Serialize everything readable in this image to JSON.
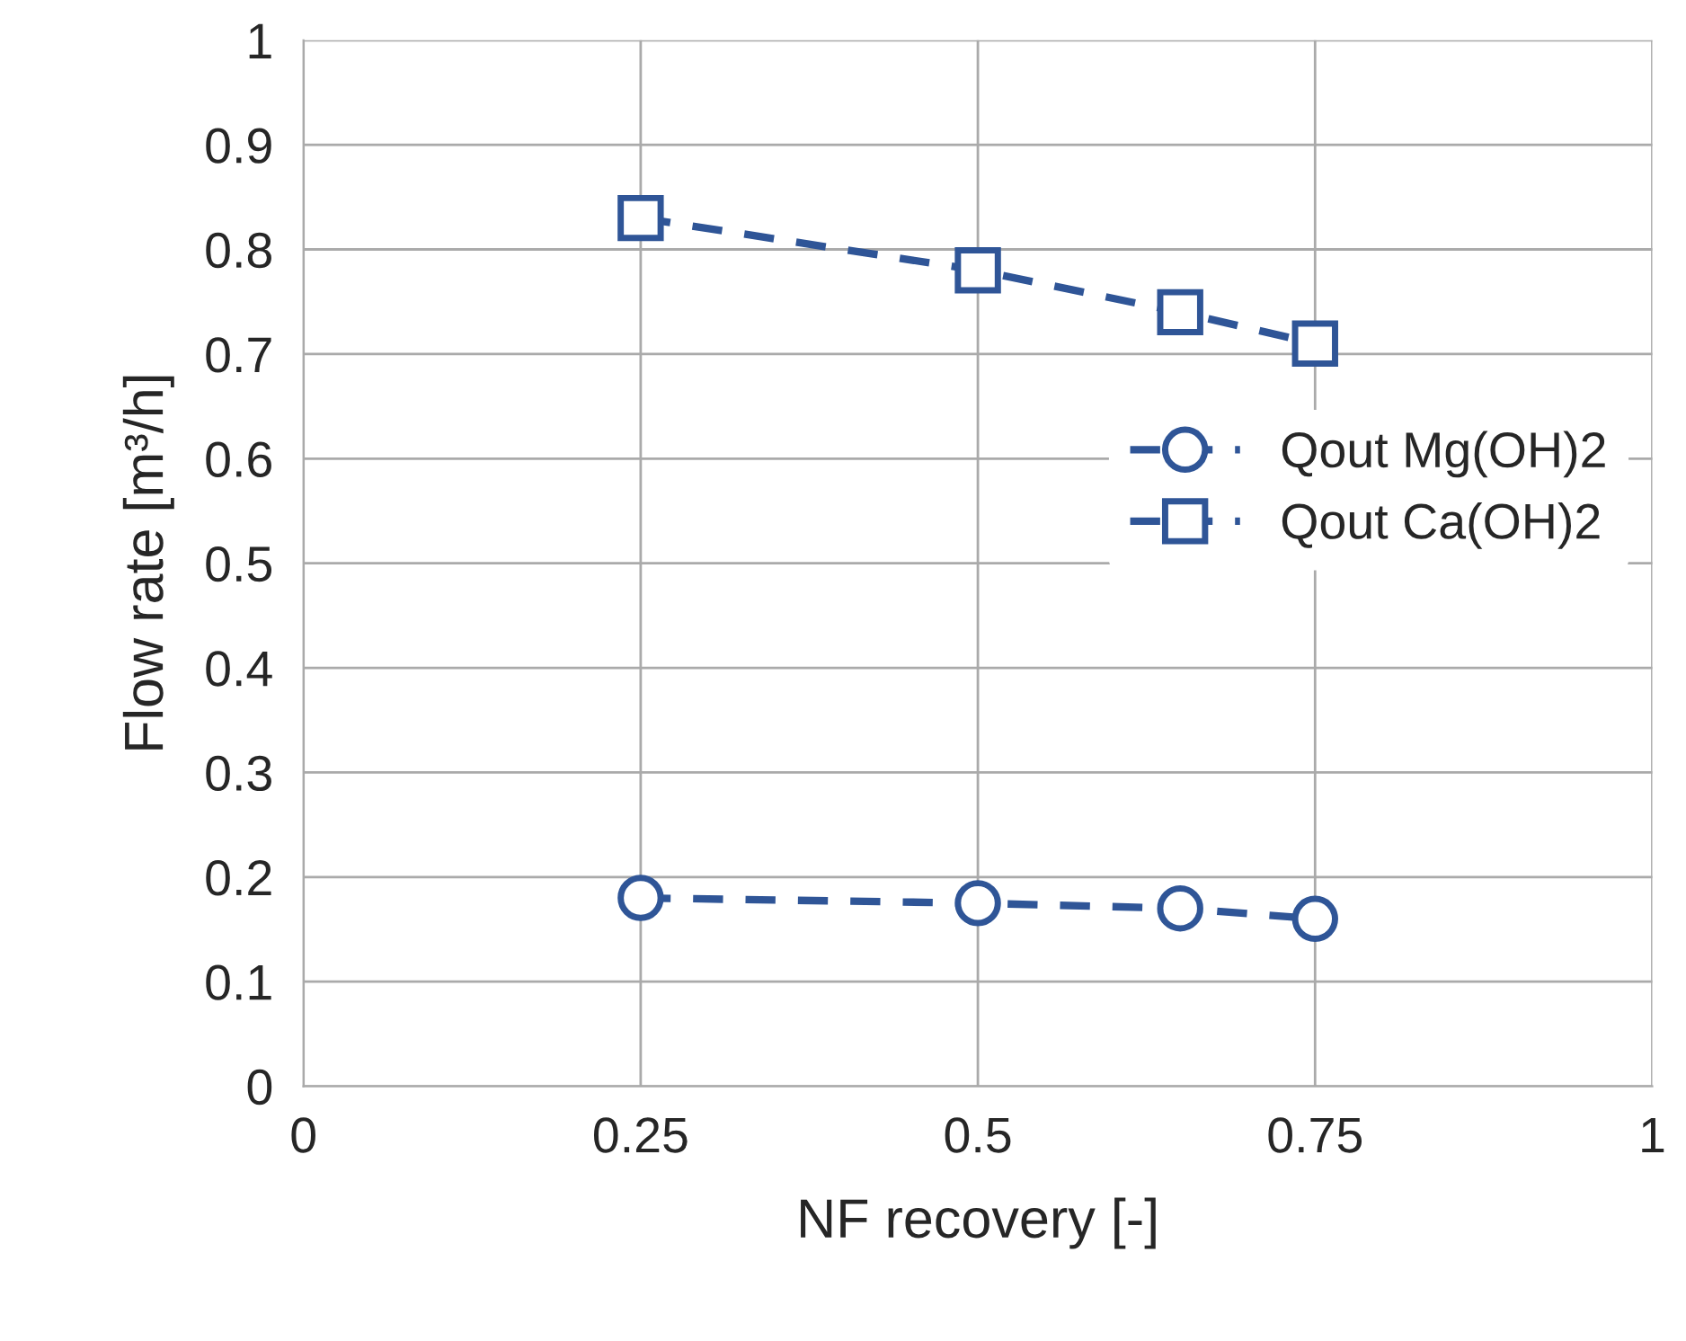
{
  "chart_data": {
    "type": "line",
    "xlabel": "NF recovery [-]",
    "ylabel": "Flow rate [m³/h]",
    "x": [
      0.25,
      0.5,
      0.65,
      0.75
    ],
    "series": [
      {
        "name": "Qout Mg(OH)2",
        "color": "#2f5597",
        "marker": "circle",
        "values": [
          0.18,
          0.175,
          0.17,
          0.16
        ]
      },
      {
        "name": "Qout Ca(OH)2",
        "color": "#2f5597",
        "marker": "square",
        "values": [
          0.83,
          0.78,
          0.74,
          0.71
        ]
      }
    ],
    "xlim": [
      0,
      1
    ],
    "xticks": [
      0,
      0.25,
      0.5,
      0.75,
      1
    ],
    "ylim": [
      0,
      1
    ],
    "yticks": [
      0,
      0.1,
      0.2,
      0.3,
      0.4,
      0.5,
      0.6,
      0.7,
      0.8,
      0.9,
      1
    ],
    "grid": true,
    "legend": "right",
    "line_style": "dashed"
  }
}
